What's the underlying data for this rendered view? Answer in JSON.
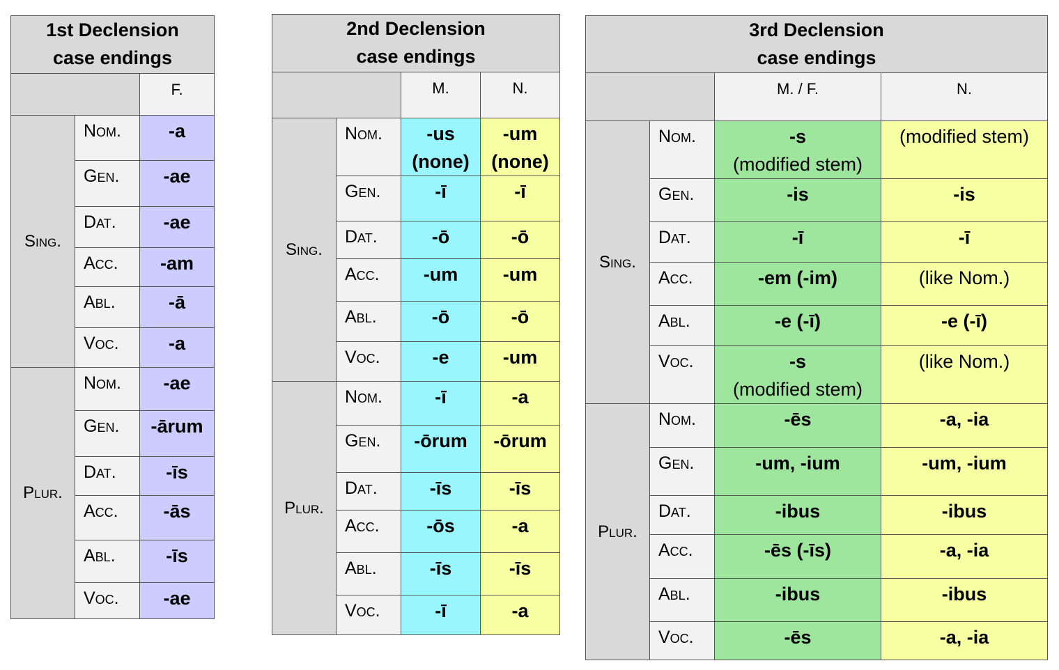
{
  "colors": {
    "header": "#d9d9d9",
    "label": "#f2f2f2",
    "first_f": "#ccccff",
    "second_m": "#99f6ff",
    "neuter": "#f7ffa3",
    "third_mf": "#9ee59e"
  },
  "tables": [
    {
      "title": [
        "1st Declension",
        "case endings"
      ],
      "genders": [
        "F."
      ],
      "numbers": [
        "Sing.",
        "Plur."
      ],
      "cases": [
        "Nom.",
        "Gen.",
        "Dat.",
        "Acc.",
        "Abl.",
        "Voc.",
        "Nom.",
        "Gen.",
        "Dat.",
        "Acc.",
        "Abl.",
        "Voc."
      ],
      "columns": [
        [
          [
            "-a"
          ],
          [
            "-ae"
          ],
          [
            "-ae"
          ],
          [
            "-am"
          ],
          [
            "-ā"
          ],
          [
            "-a"
          ],
          [
            "-ae"
          ],
          [
            "-ārum"
          ],
          [
            "-īs"
          ],
          [
            "-ās"
          ],
          [
            "-īs"
          ],
          [
            "-ae"
          ]
        ]
      ]
    },
    {
      "title": [
        "2nd Declension",
        "case endings"
      ],
      "genders": [
        "M.",
        "N."
      ],
      "numbers": [
        "Sing.",
        "Plur."
      ],
      "cases": [
        "Nom.",
        "Gen.",
        "Dat.",
        "Acc.",
        "Abl.",
        "Voc.",
        "Nom.",
        "Gen.",
        "Dat.",
        "Acc.",
        "Abl.",
        "Voc."
      ],
      "columns": [
        [
          [
            "-us",
            "(none)"
          ],
          [
            "-ī"
          ],
          [
            "-ō"
          ],
          [
            "-um"
          ],
          [
            "-ō"
          ],
          [
            "-e"
          ],
          [
            "-ī"
          ],
          [
            "-ōrum"
          ],
          [
            "-īs"
          ],
          [
            "-ōs"
          ],
          [
            "-īs"
          ],
          [
            "-ī"
          ]
        ],
        [
          [
            "-um",
            "(none)"
          ],
          [
            "-ī"
          ],
          [
            "-ō"
          ],
          [
            "-um"
          ],
          [
            "-ō"
          ],
          [
            "-um"
          ],
          [
            "-a"
          ],
          [
            "-ōrum"
          ],
          [
            "-īs"
          ],
          [
            "-a"
          ],
          [
            "-īs"
          ],
          [
            "-a"
          ]
        ]
      ]
    },
    {
      "title": [
        "3rd Declension",
        "case endings"
      ],
      "genders": [
        "M. / F.",
        "N."
      ],
      "numbers": [
        "Sing.",
        "Plur."
      ],
      "cases": [
        "Nom.",
        "Gen.",
        "Dat.",
        "Acc.",
        "Abl.",
        "Voc.",
        "Nom.",
        "Gen.",
        "Dat.",
        "Acc.",
        "Abl.",
        "Voc."
      ],
      "columns": [
        [
          [
            "-s",
            "(modified stem)"
          ],
          [
            "-is"
          ],
          [
            "-ī"
          ],
          [
            "-em (-im)"
          ],
          [
            "-e (-ī)"
          ],
          [
            "-s",
            "(modified stem)"
          ],
          [
            "-ēs"
          ],
          [
            "-um, -ium"
          ],
          [
            "-ibus"
          ],
          [
            "-ēs  (-īs)"
          ],
          [
            "-ibus"
          ],
          [
            "-ēs"
          ]
        ],
        [
          [
            "(modified stem)"
          ],
          [
            "-is"
          ],
          [
            "-ī"
          ],
          [
            "(like Nom.)"
          ],
          [
            "-e (-ī)"
          ],
          [
            "(like Nom.)"
          ],
          [
            "-a, -ia"
          ],
          [
            "-um, -ium"
          ],
          [
            "-ibus"
          ],
          [
            "-a, -ia"
          ],
          [
            "-ibus"
          ],
          [
            "-a, -ia"
          ]
        ]
      ]
    }
  ]
}
